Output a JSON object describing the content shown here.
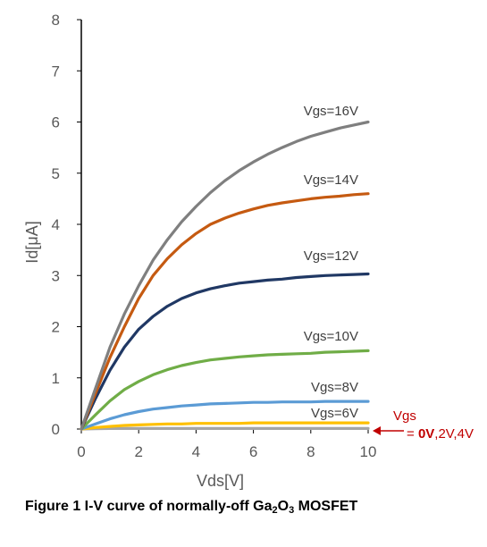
{
  "chart_data": {
    "type": "line",
    "title": "",
    "xlabel": "Vds[V]",
    "ylabel": "Id[μA]",
    "xlim": [
      0,
      10
    ],
    "ylim": [
      0,
      8
    ],
    "x_ticks": [
      "0",
      "2",
      "4",
      "6",
      "8",
      "10"
    ],
    "y_ticks": [
      "0",
      "1",
      "2",
      "3",
      "4",
      "5",
      "6",
      "7",
      "8"
    ],
    "grid": false,
    "legend": "none (series labelled inline)",
    "x": [
      0,
      0.5,
      1,
      1.5,
      2,
      2.5,
      3,
      3.5,
      4,
      4.5,
      5,
      5.5,
      6,
      6.5,
      7,
      7.5,
      8,
      8.5,
      9,
      9.5,
      10
    ],
    "series": [
      {
        "name": "Vgs=16V",
        "color": "#7f7f7f",
        "values": [
          0,
          0.8,
          1.6,
          2.25,
          2.8,
          3.3,
          3.7,
          4.05,
          4.35,
          4.62,
          4.85,
          5.05,
          5.22,
          5.37,
          5.5,
          5.62,
          5.72,
          5.8,
          5.88,
          5.94,
          6.0
        ]
      },
      {
        "name": "Vgs=14V",
        "color": "#c55a11",
        "values": [
          0,
          0.7,
          1.4,
          2.0,
          2.55,
          3.0,
          3.33,
          3.6,
          3.82,
          4.0,
          4.12,
          4.22,
          4.3,
          4.37,
          4.42,
          4.46,
          4.5,
          4.53,
          4.55,
          4.58,
          4.6
        ]
      },
      {
        "name": "Vgs=12V",
        "color": "#203864",
        "values": [
          0,
          0.6,
          1.15,
          1.6,
          1.95,
          2.2,
          2.4,
          2.55,
          2.66,
          2.74,
          2.8,
          2.85,
          2.88,
          2.91,
          2.93,
          2.96,
          2.98,
          3.0,
          3.01,
          3.02,
          3.03
        ]
      },
      {
        "name": "Vgs=10V",
        "color": "#70ad47",
        "values": [
          0,
          0.28,
          0.55,
          0.77,
          0.93,
          1.06,
          1.16,
          1.24,
          1.3,
          1.35,
          1.38,
          1.41,
          1.43,
          1.45,
          1.46,
          1.47,
          1.48,
          1.5,
          1.51,
          1.52,
          1.53
        ]
      },
      {
        "name": "Vgs=8V",
        "color": "#5b9bd5",
        "values": [
          0,
          0.1,
          0.2,
          0.28,
          0.34,
          0.39,
          0.42,
          0.45,
          0.47,
          0.49,
          0.5,
          0.51,
          0.52,
          0.52,
          0.53,
          0.53,
          0.53,
          0.54,
          0.54,
          0.54,
          0.54
        ]
      },
      {
        "name": "Vgs=6V",
        "color": "#ffc000",
        "values": [
          0,
          0.03,
          0.05,
          0.07,
          0.08,
          0.09,
          0.1,
          0.1,
          0.11,
          0.11,
          0.11,
          0.11,
          0.12,
          0.12,
          0.12,
          0.12,
          0.12,
          0.12,
          0.12,
          0.12,
          0.12
        ]
      },
      {
        "name": "Vgs= 0V,2V,4V",
        "color": "#a5a5a5",
        "values": [
          0,
          0.005,
          0.01,
          0.01,
          0.01,
          0.01,
          0.01,
          0.01,
          0.01,
          0.01,
          0.01,
          0.01,
          0.01,
          0.01,
          0.01,
          0.01,
          0.01,
          0.01,
          0.01,
          0.01,
          0.01
        ]
      }
    ],
    "annotations": {
      "vgs_label": "Vgs",
      "vgs_eq": "= ",
      "vgs_bold": "0V",
      "vgs_rest": ",2V,4V",
      "color": "#c00000"
    }
  },
  "caption": {
    "before": "Figure 1 I-V curve of normally-off Ga",
    "sub1": "2",
    "mid": "O",
    "sub2": "3",
    "after": " MOSFET"
  }
}
